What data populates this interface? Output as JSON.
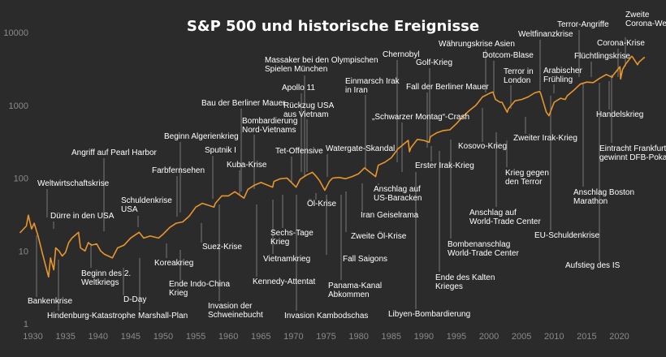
{
  "chart_data": {
    "type": "line",
    "title": "S&P 500 und historische Ereignisse",
    "xlabel": "",
    "ylabel": "",
    "y_scale": "log",
    "xlim": [
      1928,
      2024
    ],
    "ylim": [
      1,
      10000
    ],
    "grid": false,
    "line_color": "#e8952c",
    "x_ticks": [
      "1930",
      "1935",
      "1940",
      "1945",
      "1950",
      "1955",
      "1960",
      "1965",
      "1970",
      "1975",
      "1980",
      "1985",
      "1990",
      "1995",
      "2000",
      "2005",
      "2010",
      "2015",
      "2020"
    ],
    "y_ticks": [
      "1",
      "10",
      "100",
      "1000",
      "10000"
    ],
    "series": [
      {
        "x": [
          1928.0,
          1929.0,
          1929.3,
          1929.8,
          1930.2,
          1930.8,
          1931.5,
          1932.4,
          1932.7,
          1933.2,
          1933.5,
          1934.0,
          1934.5,
          1935.0,
          1935.5,
          1936.0,
          1937.0,
          1937.3,
          1938.0,
          1938.5,
          1939.0,
          1939.8,
          1940.4,
          1941.0,
          1942.2,
          1943.0,
          1944.0,
          1945.0,
          1946.3,
          1947.0,
          1948.0,
          1949.3,
          1950.0,
          1951.0,
          1952.0,
          1953.0,
          1954.0,
          1955.0,
          1956.0,
          1957.8,
          1958.0,
          1959.0,
          1960.0,
          1961.0,
          1962.4,
          1963.0,
          1964.0,
          1965.0,
          1966.8,
          1967.0,
          1968.0,
          1969.0,
          1970.4,
          1971.0,
          1972.0,
          1972.9,
          1973.5,
          1974.0,
          1974.8,
          1975.5,
          1976.0,
          1977.0,
          1978.0,
          1979.0,
          1980.0,
          1980.9,
          1981.5,
          1982.6,
          1983.0,
          1984.0,
          1985.0,
          1986.0,
          1987.6,
          1987.8,
          1988.0,
          1989.0,
          1990.0,
          1990.8,
          1991.0,
          1992.0,
          1993.0,
          1994.0,
          1995.0,
          1996.0,
          1997.0,
          1998.0,
          1999.0,
          2000.0,
          2000.6,
          2001.0,
          2001.7,
          2002.0,
          2002.8,
          2003.0,
          2004.0,
          2005.0,
          2006.0,
          2007.0,
          2007.8,
          2008.0,
          2008.8,
          2009.2,
          2010.0,
          2011.0,
          2011.7,
          2012.0,
          2013.0,
          2014.0,
          2015.0,
          2016.0,
          2017.0,
          2018.0,
          2018.9,
          2019.0,
          2020.1,
          2020.2,
          2020.5,
          2021.0,
          2021.9,
          2022.0,
          2022.8,
          2023.0,
          2023.9
        ],
        "y": [
          17.7,
          22,
          31,
          20,
          24,
          16,
          9,
          4.4,
          8,
          5.5,
          11,
          10,
          8.5,
          9.5,
          13,
          15,
          18,
          11,
          10,
          13,
          12,
          12.5,
          10,
          9,
          8,
          11,
          12,
          15,
          18,
          15,
          16,
          15,
          17,
          21,
          24,
          25,
          30,
          40,
          45,
          40,
          45,
          57,
          57,
          65,
          53,
          70,
          80,
          87,
          75,
          90,
          98,
          100,
          75,
          96,
          110,
          120,
          105,
          92,
          68,
          90,
          100,
          102,
          98,
          105,
          115,
          138,
          125,
          105,
          150,
          165,
          190,
          250,
          330,
          230,
          260,
          340,
          330,
          310,
          370,
          420,
          450,
          460,
          560,
          700,
          850,
          1000,
          1300,
          1450,
          1520,
          1200,
          1100,
          1100,
          800,
          900,
          1150,
          1200,
          1300,
          1480,
          1550,
          1400,
          800,
          720,
          1100,
          1250,
          1200,
          1350,
          1600,
          1950,
          2080,
          2050,
          2350,
          2650,
          2420,
          2550,
          3380,
          2300,
          3100,
          3700,
          4700,
          4650,
          3600,
          3900,
          4580
        ]
      }
    ],
    "annotations": [
      "Weltwirtschaftskrise",
      "Dürre in den USA",
      "Bankenkrise",
      "Hindenburg-Katastrophe",
      "Beginn des 2. Weltkriegs",
      "Angriff auf Pearl Harbor",
      "D-Day",
      "Marshall-Plan",
      "Schuldenkrise USA",
      "Koreakrieg",
      "Farbfernsehen",
      "Ende Indo-China Krieg",
      "Beginn Algerienkrieg",
      "Suez-Krise",
      "Sputnik I",
      "Invasion der Schweinebucht",
      "Kuba-Krise",
      "Bau der Berliner Mauer",
      "Bombardierung Nord-Vietnams",
      "Kennedy-Attentat",
      "Vietnamkrieg",
      "Sechs-Tage Krieg",
      "Tet-Offensive",
      "Massaker bei den Olympischen Spielen München",
      "Apollo 11",
      "Invasion Kambodschas",
      "Rückzug USA aus Vietnam",
      "Öl-Krise",
      "Watergate-Skandal",
      "Fall Saigons",
      "Zweite Öl-Krise",
      "Einmarsch Irak in Iran",
      "Iran Geiselrama",
      "Panama-Kanal Abkommen",
      "Anschlag auf US-Baracken",
      "Chernobyl",
      "„Schwarzer Montag“-Crash",
      "Libyen-Bombardierung",
      "Fall der Berliner Mauer",
      "Golf-Krieg",
      "Erster Irak-Krieg",
      "Ende des Kalten Krieges",
      "Bombenanschlag World-Trade Center",
      "Währungskrise Asien",
      "Kosovo-Krieg",
      "Dotcom-Blase",
      "Anschlag auf World-Trade Center",
      "Krieg gegen den Terror",
      "Terror in London",
      "Zweiter Irak-Krieg",
      "Weltfinanzkrise",
      "EU-Schuldenkrise",
      "Arabischer Frühling",
      "Anschlag Boston Marathon",
      "Terror-Angriffe",
      "Flüchtlingskrise",
      "Aufstieg des IS",
      "Zweite Corona-Welle",
      "Corona-Krise",
      "Handelskrieg",
      "Eintracht Frankfurt gewinnt DFB-Pokal"
    ]
  }
}
